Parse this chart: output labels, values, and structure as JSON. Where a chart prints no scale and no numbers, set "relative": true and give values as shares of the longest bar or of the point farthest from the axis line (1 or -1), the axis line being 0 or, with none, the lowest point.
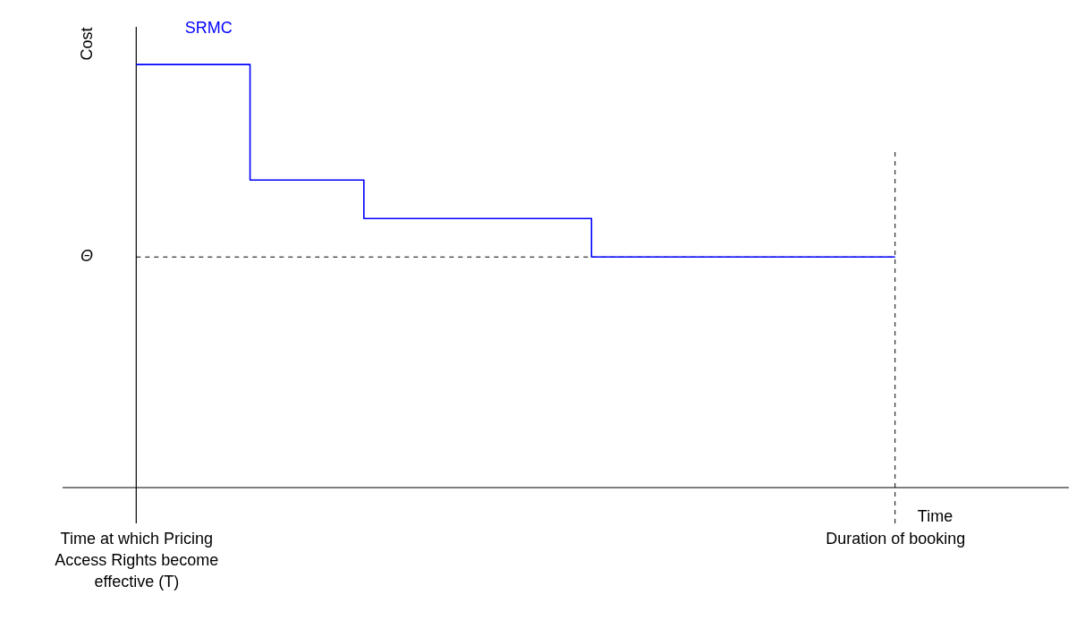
{
  "chart_data": {
    "type": "step",
    "relative": true,
    "xlabel": "Time",
    "ylabel": "Cost",
    "categories": [
      "Time at which Pricing Access Rights become effective (T)",
      null,
      null,
      null,
      null,
      null,
      null,
      null,
      null,
      null,
      null,
      null,
      null,
      null,
      null,
      null,
      null,
      null,
      null,
      null,
      "Duration of booking"
    ],
    "series": [
      {
        "name": "SRMC",
        "color": "#0000ff",
        "values": [
          1,
          1,
          1,
          0.727,
          0.727,
          0.727,
          0.636,
          0.636,
          0.636,
          0.636,
          0.636,
          0.636,
          0.545,
          0.545,
          0.545,
          0.545,
          0.545,
          0.545,
          0.545,
          0.545,
          0.545
        ]
      }
    ],
    "ref_lines": [
      {
        "axis": "y",
        "value": 0.545,
        "label": "Θ",
        "line_style": "dashed"
      },
      {
        "axis": "x",
        "value": "Duration of booking",
        "line_style": "dashed"
      }
    ],
    "grid": false,
    "line_style": "solid"
  }
}
